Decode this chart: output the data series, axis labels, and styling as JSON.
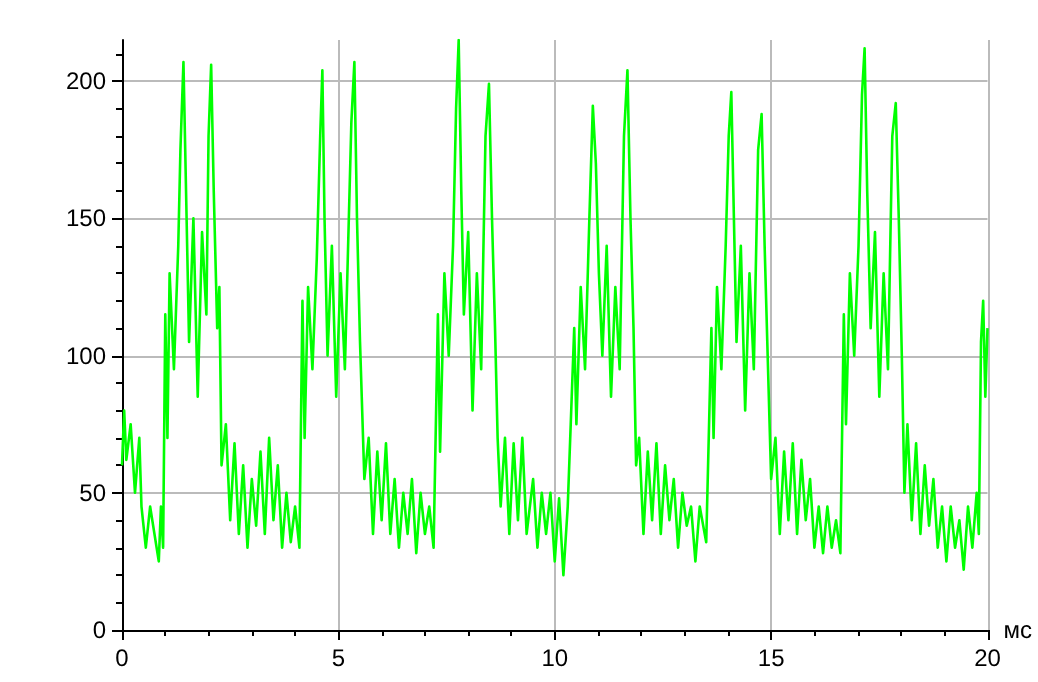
{
  "chart_data": {
    "type": "line",
    "xlabel": "мс",
    "grid": true,
    "marker": "none",
    "line_style": "solid",
    "xlim": [
      0,
      20
    ],
    "ylim": [
      0,
      215
    ],
    "xticks": [
      0,
      {
        "value": 1,
        "label": null
      },
      {
        "value": 2,
        "label": null
      },
      {
        "value": 3,
        "label": null
      },
      {
        "value": 4,
        "label": null
      },
      5,
      {
        "value": 6,
        "label": null
      },
      {
        "value": 7,
        "label": null
      },
      {
        "value": 8,
        "label": null
      },
      {
        "value": 9,
        "label": null
      },
      10,
      {
        "value": 11,
        "label": null
      },
      {
        "value": 12,
        "label": null
      },
      {
        "value": 13,
        "label": null
      },
      {
        "value": 14,
        "label": null
      },
      15,
      {
        "value": 16,
        "label": null
      },
      {
        "value": 17,
        "label": null
      },
      {
        "value": 18,
        "label": null
      },
      {
        "value": 19,
        "label": null
      },
      20
    ],
    "yticks": [
      0,
      {
        "value": 10,
        "label": null
      },
      {
        "value": 20,
        "label": null
      },
      {
        "value": 30,
        "label": null
      },
      {
        "value": 40,
        "label": null
      },
      50,
      {
        "value": 60,
        "label": null
      },
      {
        "value": 70,
        "label": null
      },
      {
        "value": 80,
        "label": null
      },
      {
        "value": 90,
        "label": null
      },
      100,
      {
        "value": 110,
        "label": null
      },
      {
        "value": 120,
        "label": null
      },
      {
        "value": 130,
        "label": null
      },
      {
        "value": 140,
        "label": null
      },
      150,
      {
        "value": 160,
        "label": null
      },
      {
        "value": 170,
        "label": null
      },
      {
        "value": 180,
        "label": null
      },
      {
        "value": 190,
        "label": null
      },
      200,
      {
        "value": 210,
        "label": null
      }
    ],
    "series": [
      {
        "color": "#00ff00",
        "x": [
          0,
          0.05,
          0.1,
          0.2,
          0.3,
          0.4,
          0.45,
          0.55,
          0.65,
          0.75,
          0.85,
          0.9,
          0.95,
          1.0,
          1.05,
          1.1,
          1.2,
          1.3,
          1.35,
          1.42,
          1.48,
          1.55,
          1.65,
          1.75,
          1.85,
          1.95,
          2.0,
          2.06,
          2.12,
          2.2,
          2.25,
          2.3,
          2.4,
          2.5,
          2.6,
          2.7,
          2.8,
          2.9,
          3.0,
          3.1,
          3.2,
          3.3,
          3.4,
          3.5,
          3.6,
          3.7,
          3.8,
          3.9,
          4.0,
          4.1,
          4.17,
          4.22,
          4.3,
          4.4,
          4.5,
          4.58,
          4.63,
          4.68,
          4.75,
          4.85,
          4.95,
          5.05,
          5.15,
          5.3,
          5.37,
          5.43,
          5.5,
          5.6,
          5.7,
          5.8,
          5.9,
          6.0,
          6.1,
          6.2,
          6.3,
          6.4,
          6.5,
          6.6,
          6.7,
          6.8,
          6.9,
          7.0,
          7.1,
          7.2,
          7.3,
          7.35,
          7.45,
          7.55,
          7.65,
          7.72,
          7.78,
          7.84,
          7.9,
          8.0,
          8.1,
          8.2,
          8.3,
          8.4,
          8.48,
          8.55,
          8.62,
          8.68,
          8.75,
          8.85,
          8.95,
          9.05,
          9.15,
          9.25,
          9.35,
          9.5,
          9.6,
          9.7,
          9.8,
          9.9,
          10.0,
          10.1,
          10.2,
          10.3,
          10.45,
          10.5,
          10.6,
          10.7,
          10.8,
          10.88,
          10.95,
          11.02,
          11.1,
          11.2,
          11.3,
          11.4,
          11.5,
          11.6,
          11.68,
          11.75,
          11.82,
          11.88,
          11.95,
          12.05,
          12.15,
          12.25,
          12.35,
          12.45,
          12.55,
          12.65,
          12.75,
          12.85,
          12.95,
          13.05,
          13.15,
          13.25,
          13.35,
          13.5,
          13.62,
          13.67,
          13.75,
          13.85,
          13.95,
          14.02,
          14.08,
          14.14,
          14.2,
          14.3,
          14.4,
          14.5,
          14.6,
          14.7,
          14.78,
          14.85,
          14.92,
          15.0,
          15.1,
          15.2,
          15.3,
          15.4,
          15.5,
          15.6,
          15.7,
          15.8,
          15.9,
          16.0,
          16.1,
          16.2,
          16.3,
          16.4,
          16.5,
          16.6,
          16.68,
          16.73,
          16.82,
          16.92,
          17.02,
          17.1,
          17.16,
          17.22,
          17.3,
          17.4,
          17.5,
          17.6,
          17.7,
          17.8,
          17.88,
          17.95,
          18.02,
          18.08,
          18.15,
          18.25,
          18.35,
          18.45,
          18.55,
          18.65,
          18.75,
          18.85,
          18.95,
          19.05,
          19.15,
          19.25,
          19.35,
          19.45,
          19.55,
          19.65,
          19.75,
          19.8,
          19.85,
          19.9,
          19.95,
          20.0
        ],
        "values": [
          60,
          80,
          62,
          75,
          50,
          70,
          45,
          30,
          45,
          35,
          25,
          45,
          30,
          115,
          70,
          130,
          95,
          140,
          175,
          207,
          160,
          105,
          150,
          85,
          145,
          115,
          180,
          206,
          160,
          110,
          125,
          60,
          75,
          40,
          68,
          35,
          60,
          30,
          55,
          38,
          65,
          35,
          70,
          40,
          60,
          30,
          50,
          32,
          45,
          30,
          120,
          70,
          125,
          95,
          135,
          180,
          204,
          150,
          100,
          140,
          85,
          130,
          95,
          185,
          207,
          150,
          105,
          55,
          70,
          35,
          65,
          40,
          68,
          35,
          55,
          30,
          50,
          35,
          55,
          28,
          50,
          35,
          45,
          30,
          115,
          65,
          130,
          100,
          140,
          190,
          215,
          160,
          115,
          145,
          80,
          130,
          95,
          180,
          199,
          150,
          110,
          70,
          45,
          70,
          35,
          68,
          40,
          70,
          35,
          55,
          30,
          50,
          35,
          50,
          25,
          48,
          20,
          45,
          110,
          75,
          125,
          95,
          150,
          191,
          170,
          130,
          100,
          140,
          85,
          125,
          95,
          180,
          204,
          150,
          110,
          60,
          70,
          35,
          65,
          40,
          68,
          35,
          60,
          40,
          55,
          30,
          50,
          38,
          45,
          25,
          45,
          32,
          110,
          70,
          125,
          95,
          140,
          180,
          196,
          150,
          105,
          140,
          80,
          130,
          95,
          175,
          188,
          140,
          100,
          55,
          70,
          35,
          65,
          40,
          68,
          35,
          62,
          40,
          55,
          30,
          45,
          28,
          45,
          30,
          40,
          28,
          115,
          75,
          130,
          100,
          140,
          195,
          212,
          160,
          110,
          145,
          85,
          130,
          95,
          180,
          192,
          150,
          100,
          50,
          75,
          40,
          68,
          35,
          60,
          38,
          55,
          30,
          45,
          25,
          45,
          30,
          40,
          22,
          45,
          30,
          50,
          35,
          105,
          120,
          85,
          110
        ]
      }
    ]
  }
}
